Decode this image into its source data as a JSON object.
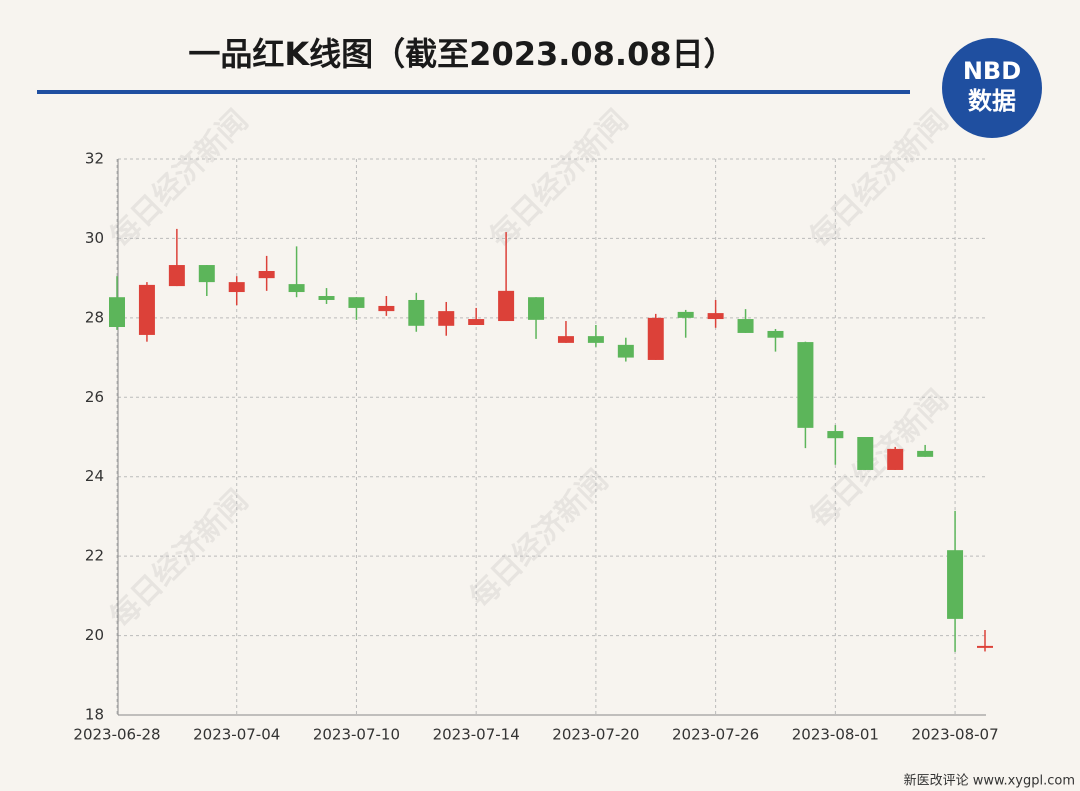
{
  "chart_data": {
    "type": "candlestick",
    "title": "一品红K线图（截至2023.08.08日）",
    "logo": {
      "top": "NBD",
      "bottom": "数据"
    },
    "watermark": "每日经济新闻",
    "footer": "新医改评论 www.xygpl.com",
    "categories": [
      "2023-06-28",
      null,
      null,
      null,
      "2023-07-04",
      null,
      null,
      null,
      "2023-07-10",
      null,
      null,
      null,
      "2023-07-14",
      null,
      null,
      null,
      "2023-07-20",
      null,
      null,
      null,
      "2023-07-26",
      null,
      null,
      null,
      "2023-08-01",
      null,
      null,
      null,
      "2023-08-07",
      null
    ],
    "open": [
      28.52,
      27.57,
      28.8,
      29.33,
      28.65,
      29.0,
      28.85,
      28.55,
      28.52,
      28.17,
      28.45,
      27.8,
      27.82,
      27.92,
      28.52,
      27.37,
      27.54,
      27.32,
      26.94,
      28.15,
      27.97,
      27.97,
      27.67,
      27.39,
      25.15,
      25.0,
      24.17,
      24.65,
      22.15,
      19.69
    ],
    "high": [
      29.05,
      28.9,
      30.24,
      29.33,
      29.05,
      29.56,
      29.8,
      28.75,
      28.52,
      28.55,
      28.63,
      28.4,
      28.25,
      30.16,
      28.52,
      27.92,
      27.82,
      27.5,
      28.1,
      28.2,
      28.45,
      28.22,
      27.72,
      27.4,
      25.3,
      25.0,
      24.75,
      24.8,
      23.14,
      20.14
    ],
    "low": [
      27.7,
      27.4,
      28.8,
      28.55,
      28.32,
      28.68,
      28.52,
      28.35,
      27.95,
      28.05,
      27.65,
      27.55,
      27.82,
      27.92,
      27.47,
      27.37,
      27.27,
      26.9,
      26.94,
      27.5,
      27.75,
      27.62,
      27.15,
      24.72,
      24.3,
      24.17,
      24.17,
      24.5,
      19.59,
      19.6
    ],
    "close": [
      27.77,
      28.83,
      29.33,
      28.9,
      28.9,
      29.18,
      28.65,
      28.45,
      28.25,
      28.3,
      27.8,
      28.17,
      27.97,
      28.68,
      27.95,
      27.54,
      27.37,
      27.0,
      28.0,
      28.0,
      28.12,
      27.62,
      27.5,
      25.23,
      24.97,
      24.17,
      24.7,
      24.5,
      20.42,
      19.74
    ],
    "up_color": "#dc4139",
    "down_color": "#5cb55a",
    "ylim": [
      18,
      32
    ],
    "yticks": [
      18,
      20,
      22,
      24,
      26,
      28,
      30,
      32
    ],
    "grid": true
  }
}
